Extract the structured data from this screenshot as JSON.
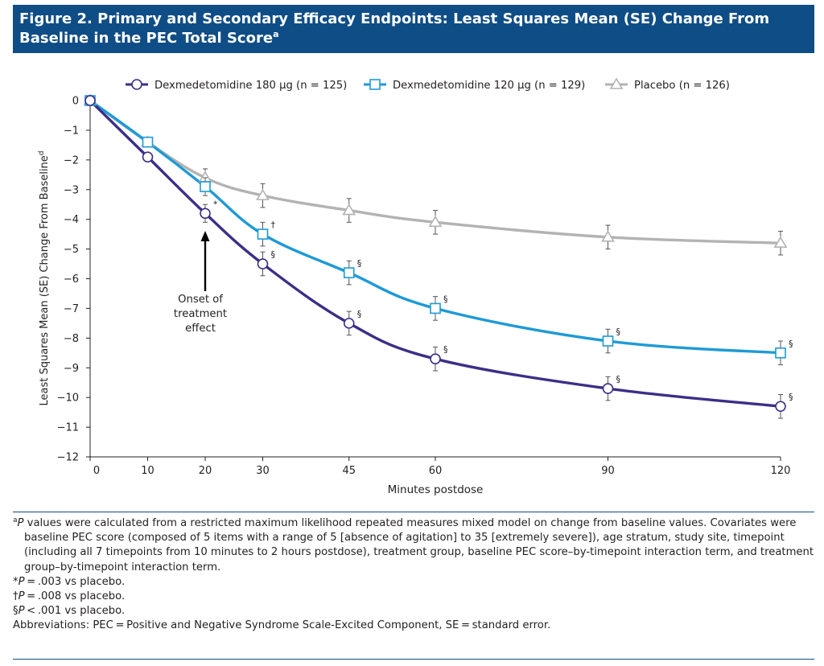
{
  "figure": {
    "title": "Figure 2. Primary and Secondary Efficacy Endpoints: Least Squares Mean (SE) Change From Baseline in the PEC Total Score",
    "title_sup": "a"
  },
  "chart_data": {
    "type": "line",
    "xlabel": "Minutes postdose",
    "ylabel": "Least Squares Mean (SE) Change From Baseline",
    "ylabel_sup": "d",
    "x": [
      0,
      10,
      20,
      30,
      45,
      60,
      90,
      120
    ],
    "x_ticks": [
      "0",
      "10",
      "20",
      "30",
      "45",
      "60",
      "90",
      "120"
    ],
    "y_ticks": [
      "0",
      "−1",
      "−2",
      "−3",
      "−4",
      "−5",
      "−6",
      "−7",
      "−8",
      "−9",
      "−10",
      "−11",
      "−12"
    ],
    "ylim": [
      -12,
      0
    ],
    "grid": false,
    "legend_position": "top",
    "series": [
      {
        "name": "Dexmedetomidine 180 µg (n = 125)",
        "marker": "circle",
        "color": "#3c2e87",
        "values": [
          0,
          -1.9,
          -3.8,
          -5.5,
          -7.5,
          -8.7,
          -9.7,
          -10.3
        ],
        "se": [
          0,
          0.1,
          0.3,
          0.4,
          0.4,
          0.4,
          0.4,
          0.4
        ],
        "annotations": [
          "",
          "",
          "*",
          "§",
          "§",
          "§",
          "§",
          "§"
        ]
      },
      {
        "name": "Dexmedetomidine 120 µg (n = 129)",
        "marker": "square",
        "color": "#1e9ad6",
        "values": [
          0,
          -1.4,
          -2.9,
          -4.5,
          -5.8,
          -7.0,
          -8.1,
          -8.5
        ],
        "se": [
          0,
          0.1,
          0.3,
          0.4,
          0.4,
          0.4,
          0.4,
          0.4
        ],
        "annotations": [
          "",
          "",
          "",
          "†",
          "§",
          "§",
          "§",
          "§"
        ]
      },
      {
        "name": "Placebo (n = 126)",
        "marker": "triangle",
        "color": "#b3b3b3",
        "values": [
          0,
          -1.4,
          -2.6,
          -3.2,
          -3.7,
          -4.1,
          -4.6,
          -4.8
        ],
        "se": [
          0,
          0.1,
          0.3,
          0.4,
          0.4,
          0.4,
          0.4,
          0.4
        ],
        "annotations": [
          "",
          "",
          "",
          "",
          "",
          "",
          "",
          ""
        ]
      }
    ],
    "arrow_annotation": {
      "lines": [
        "Onset of",
        "treatment",
        "effect"
      ],
      "x": 20
    }
  },
  "footnotes": {
    "main_sup": "a",
    "main_p": "P",
    "main_text": " values were calculated from a restricted maximum likelihood repeated measures mixed model on change from baseline values. Covariates were baseline PEC score (composed of 5 items with a range of 5 [absence of agitation] to 35 [extremely severe]), age stratum, study site, timepoint (including all 7 timepoints from 10 minutes to 2 hours postdose), treatment group, baseline PEC score–by-timepoint interaction term, and treatment group–by-timepoint interaction term.",
    "star_symbol": "*",
    "star_p": "P",
    "star_text": " = .003 vs placebo.",
    "dagger_symbol": "†",
    "dagger_p": "P",
    "dagger_text": " = .008 vs placebo.",
    "section_symbol": "§",
    "section_p": "P",
    "section_text": " < .001 vs placebo.",
    "abbreviations": "Abbreviations: PEC = Positive and Negative Syndrome Scale-Excited Component, SE = standard error."
  }
}
